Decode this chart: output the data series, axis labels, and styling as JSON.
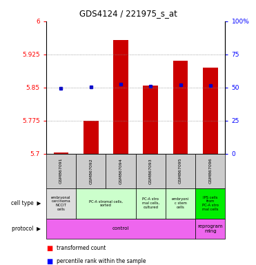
{
  "title": "GDS4124 / 221975_s_at",
  "samples": [
    "GSM867091",
    "GSM867092",
    "GSM867094",
    "GSM867093",
    "GSM867095",
    "GSM867096"
  ],
  "transformed_counts": [
    5.703,
    5.775,
    5.957,
    5.855,
    5.91,
    5.895
  ],
  "percentile_ranks": [
    5.848,
    5.851,
    5.857,
    5.852,
    5.856,
    5.854
  ],
  "ylim_left": [
    5.7,
    6.0
  ],
  "ylim_right": [
    0,
    100
  ],
  "yticks_left": [
    5.7,
    5.775,
    5.85,
    5.925,
    6.0
  ],
  "yticks_right": [
    0,
    25,
    50,
    75,
    100
  ],
  "ytick_labels_left": [
    "5.7",
    "5.775",
    "5.85",
    "5.925",
    "6"
  ],
  "ytick_labels_right": [
    "0",
    "25",
    "50",
    "75",
    "100%"
  ],
  "bar_color": "#cc0000",
  "percentile_color": "#0000cc",
  "bar_bottom": 5.7,
  "cell_type_groups": [
    {
      "label": "embryonal\ncarcinoma\nNCCIT\ncells",
      "start": 0,
      "end": 1,
      "color": "#dddddd"
    },
    {
      "label": "PC-A stromal cells,\nsorted",
      "start": 1,
      "end": 3,
      "color": "#ccffcc"
    },
    {
      "label": "PC-A stro\nmal cells,\ncultured",
      "start": 3,
      "end": 4,
      "color": "#ccffcc"
    },
    {
      "label": "embryoni\nc stem\ncells",
      "start": 4,
      "end": 5,
      "color": "#ccffcc"
    },
    {
      "label": "IPS cells\nfrom\nPC-A stro\nmal cells",
      "start": 5,
      "end": 6,
      "color": "#00ee00"
    }
  ],
  "protocol_groups": [
    {
      "label": "control",
      "start": 0,
      "end": 5,
      "color": "#ee66ee"
    },
    {
      "label": "reprogram\nming",
      "start": 5,
      "end": 6,
      "color": "#ee66ee"
    }
  ],
  "background_color": "#ffffff",
  "grid_color": "#888888",
  "sample_bg_color": "#cccccc"
}
